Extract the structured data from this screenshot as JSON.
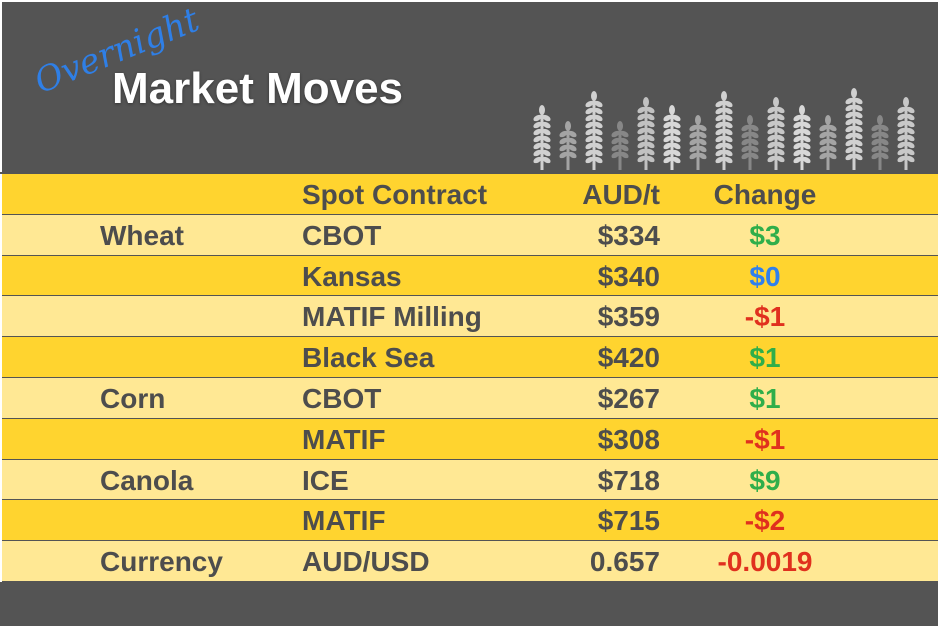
{
  "header": {
    "script_word": "Overnight",
    "title": "Market Moves",
    "decoration": "wheat-stalks-icon"
  },
  "columns": [
    "",
    "Spot Contract",
    "AUD/t",
    "Change"
  ],
  "colors": {
    "positive": "#2fae4a",
    "neutral": "#2f80ed",
    "negative": "#e0301e",
    "row_dark": "#ffd42f",
    "row_light": "#ffe894",
    "background": "#545454"
  },
  "rows": [
    {
      "commodity": "Wheat",
      "contract": "CBOT",
      "price": "$334",
      "change": "$3",
      "direction": "positive"
    },
    {
      "commodity": "",
      "contract": "Kansas",
      "price": "$340",
      "change": "$0",
      "direction": "neutral"
    },
    {
      "commodity": "",
      "contract": "MATIF Milling",
      "price": "$359",
      "change": "-$1",
      "direction": "negative"
    },
    {
      "commodity": "",
      "contract": "Black Sea",
      "price": "$420",
      "change": "$1",
      "direction": "positive"
    },
    {
      "commodity": "Corn",
      "contract": "CBOT",
      "price": "$267",
      "change": "$1",
      "direction": "positive"
    },
    {
      "commodity": "",
      "contract": "MATIF",
      "price": "$308",
      "change": "-$1",
      "direction": "negative"
    },
    {
      "commodity": "Canola",
      "contract": "ICE",
      "price": "$718",
      "change": "$9",
      "direction": "positive"
    },
    {
      "commodity": "",
      "contract": "MATIF",
      "price": "$715",
      "change": "-$2",
      "direction": "negative"
    },
    {
      "commodity": "Currency",
      "contract": "AUD/USD",
      "price": "0.657",
      "change": "-0.0019",
      "direction": "negative"
    }
  ]
}
